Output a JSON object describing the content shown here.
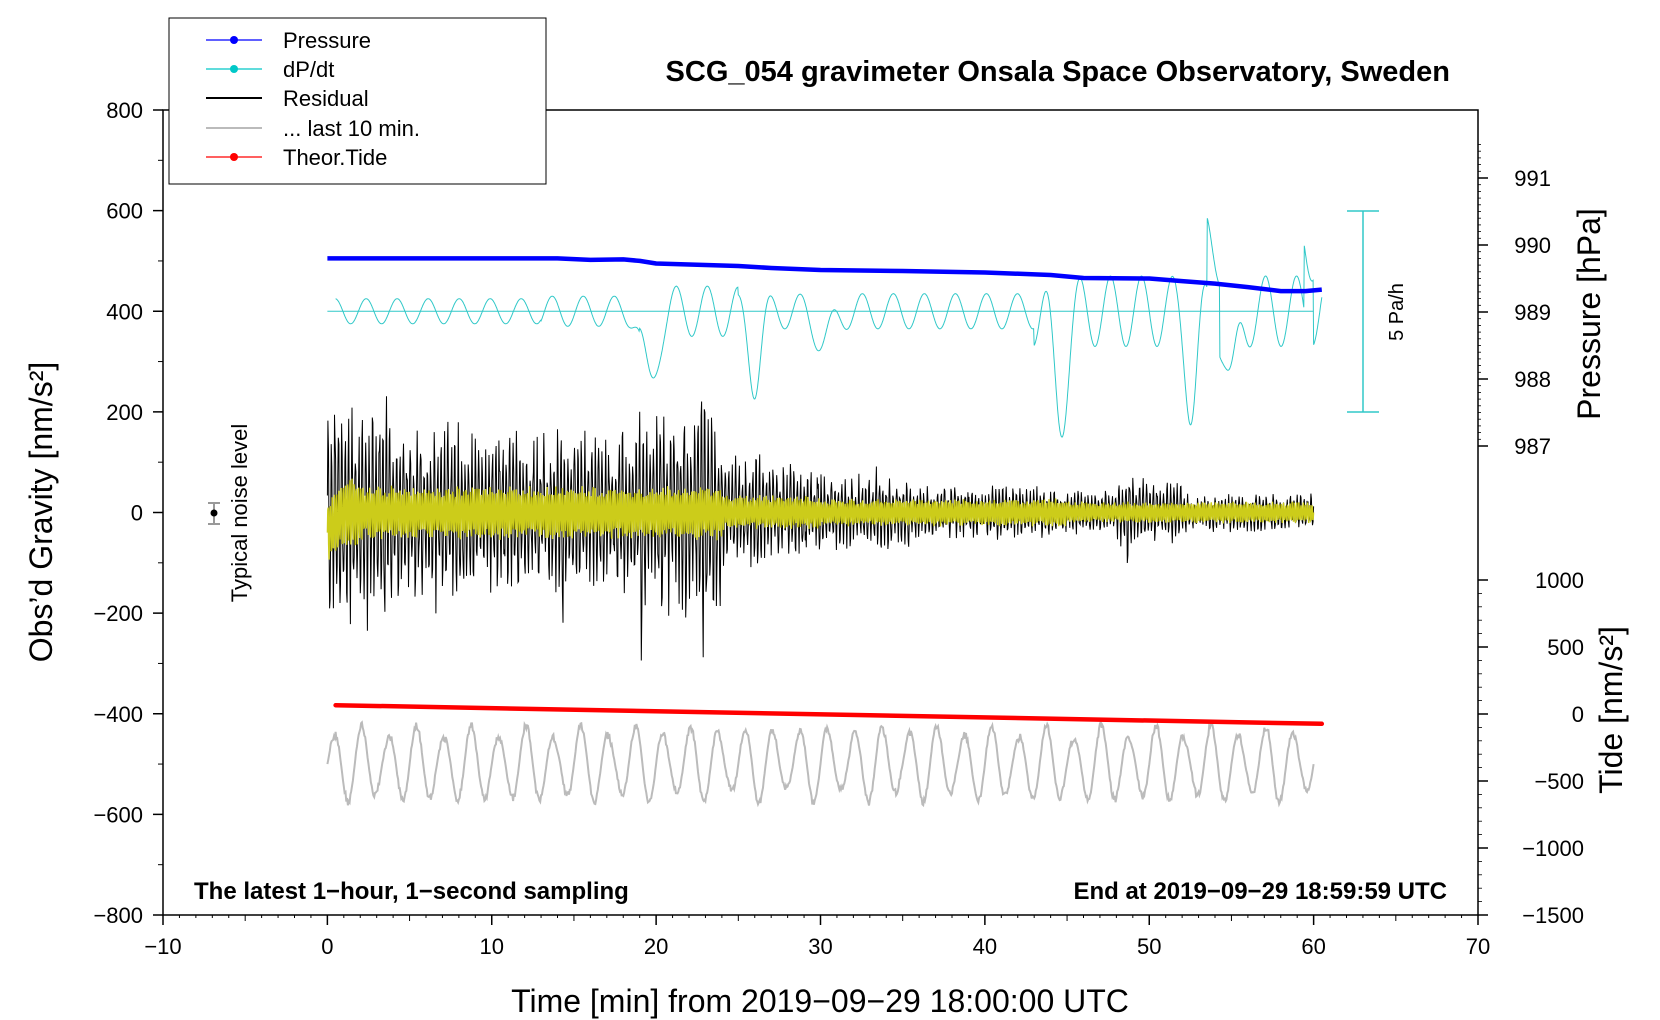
{
  "chart_data": {
    "type": "line",
    "title": "SCG_054 gravimeter Onsala Space Observatory, Sweden",
    "xlabel": "Time [min] from 2019−09−29 18:00:00 UTC",
    "ylabel_left": "Obs’d Gravity [nm/s²]",
    "ylabel_right_top": "Pressure [hPa]",
    "ylabel_right_bottom": "Tide [nm/s²]",
    "xlim": [
      -10,
      70
    ],
    "ylim": [
      -800,
      800
    ],
    "x_ticks": [
      -10,
      0,
      10,
      20,
      30,
      40,
      50,
      60,
      70
    ],
    "x_tick_labels": [
      "−10",
      "0",
      "10",
      "20",
      "30",
      "40",
      "50",
      "60",
      "70"
    ],
    "y_ticks": [
      800,
      600,
      400,
      200,
      0,
      -200,
      -400,
      -600,
      -800
    ],
    "y_tick_labels": [
      "800",
      "600",
      "400",
      "200",
      "0",
      "−200",
      "−400",
      "−600",
      "−800"
    ],
    "pressure_axis": {
      "ticks": [
        991,
        990,
        989,
        988,
        987
      ],
      "tick_labels": [
        "991",
        "990",
        "989",
        "988",
        "987"
      ]
    },
    "tide_axis": {
      "ticks": [
        1000,
        500,
        0,
        -500,
        -1000,
        -1500
      ],
      "tick_labels": [
        "1000",
        "500",
        "0",
        "−500",
        "−1000",
        "−1500"
      ]
    },
    "legend": {
      "position": "top-left",
      "entries": [
        {
          "label": "Pressure",
          "color": "#0000ff",
          "marker": true
        },
        {
          "label": "dP/dt",
          "color": "#00c8c8",
          "marker": true
        },
        {
          "label": "Residual",
          "color": "#000000",
          "marker": false
        },
        {
          "label": "... last 10 min.",
          "color": "#bbbbbb",
          "marker": false
        },
        {
          "label": "Theor.Tide",
          "color": "#ff0000",
          "marker": true
        }
      ]
    },
    "noise_marker": {
      "x": -7,
      "y": 0,
      "error": 20,
      "label": "Typical noise level"
    },
    "dpdt_scale_bar": {
      "x": 63.5,
      "y_min": 200,
      "y_max": 600,
      "label": "5 Pa/h"
    },
    "annotations": {
      "bottom_left": "The latest 1−hour, 1−second sampling",
      "bottom_right": "End at 2019−09−29 18:59:59 UTC"
    },
    "series": [
      {
        "name": "Pressure",
        "color": "#0000ff",
        "x": [
          0,
          5,
          10,
          14,
          16,
          18,
          19,
          20,
          22,
          25,
          27,
          30,
          35,
          40,
          44,
          46,
          50,
          52,
          54,
          56,
          58,
          59.5,
          60.5
        ],
        "y": [
          505,
          505,
          505,
          505,
          502,
          503,
          500,
          495,
          493,
          490,
          486,
          482,
          480,
          477,
          472,
          466,
          465,
          460,
          455,
          448,
          440,
          440,
          443
        ]
      },
      {
        "name": "dP/dt baseline",
        "color": "#00c8c8",
        "x": [
          0,
          60
        ],
        "y": [
          400,
          400
        ]
      },
      {
        "name": "Theor.Tide",
        "color": "#ff0000",
        "x": [
          0.5,
          60.5
        ],
        "y": [
          -383,
          -420
        ]
      }
    ]
  }
}
